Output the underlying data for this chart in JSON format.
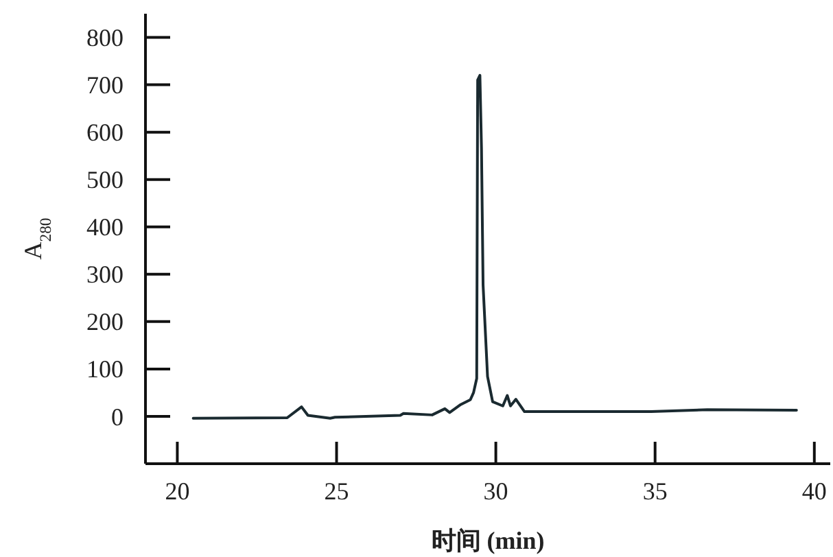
{
  "chart_data": {
    "type": "line",
    "xlabel": "时间 (min)",
    "ylabel": "A$_{280}$",
    "x": [
      20.5,
      23.45,
      23.9,
      24.1,
      24.8,
      24.95,
      27.0,
      27.1,
      28.0,
      28.4,
      28.55,
      28.9,
      29.2,
      29.3,
      29.4,
      29.43,
      29.5,
      29.55,
      29.6,
      29.74,
      29.9,
      30.22,
      30.36,
      30.46,
      30.63,
      30.9,
      34.87,
      36.64,
      39.44
    ],
    "series": [
      {
        "color": "#1a2a30",
        "values": [
          -4,
          -3,
          20,
          2,
          -4,
          -2,
          2,
          6,
          3,
          16,
          8,
          25,
          35,
          50,
          80,
          710,
          720,
          566,
          277,
          84,
          31,
          22,
          44,
          22,
          36,
          10,
          10,
          14,
          13
        ]
      }
    ],
    "xlim": [
      19,
      40.5
    ],
    "xticks": [
      20,
      25,
      30,
      35,
      40
    ],
    "ylim": [
      -100,
      850
    ],
    "yticks": [
      0,
      100,
      200,
      300,
      400,
      500,
      600,
      700,
      800
    ],
    "grid": false,
    "marker": "none",
    "line_style": "solid"
  }
}
